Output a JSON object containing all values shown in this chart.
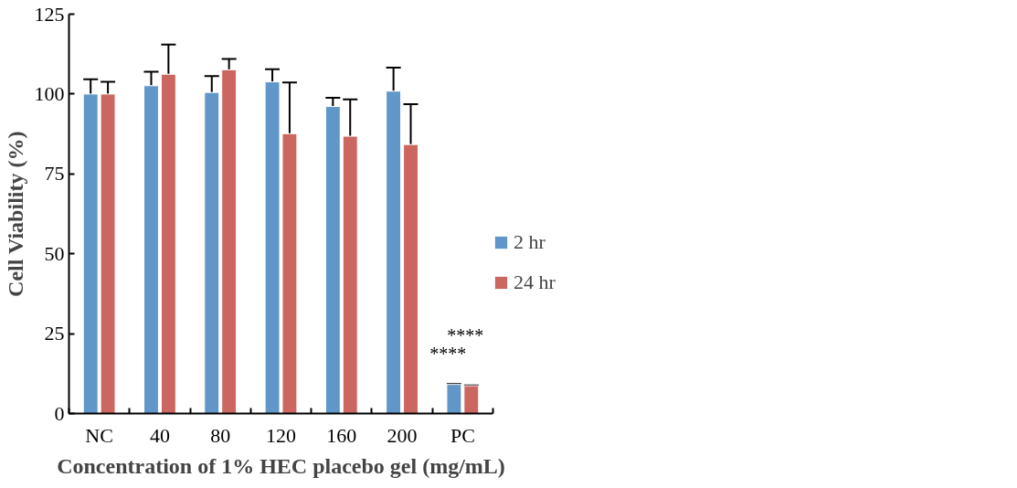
{
  "chart_data": {
    "type": "bar",
    "xlabel": "Concentration of 1% HEC placebo gel (mg/mL)",
    "ylabel": "Cell Viability (%)",
    "categories": [
      "NC",
      "40",
      "80",
      "120",
      "160",
      "200",
      "PC"
    ],
    "series": [
      {
        "name": "2 hr",
        "color": "#6096c8",
        "values": [
          100.0,
          102.6,
          100.5,
          103.8,
          96.1,
          100.9,
          9.1
        ],
        "errors": [
          [
            100.0,
            104.6
          ],
          [
            102.6,
            107.0
          ],
          [
            100.5,
            105.6
          ],
          [
            103.8,
            107.8
          ],
          [
            96.1,
            98.8
          ],
          [
            100.9,
            108.3
          ],
          [
            9.1,
            9.2
          ]
        ]
      },
      {
        "name": "24 hr",
        "color": "#cc6660",
        "values": [
          100.0,
          106.2,
          107.6,
          87.6,
          86.8,
          84.2,
          8.7
        ],
        "errors": [
          [
            100.0,
            103.8
          ],
          [
            106.2,
            115.5
          ],
          [
            107.6,
            111.0
          ],
          [
            87.6,
            103.6
          ],
          [
            86.8,
            98.3
          ],
          [
            84.2,
            96.8
          ],
          [
            8.7,
            8.8
          ]
        ]
      }
    ],
    "ylim": [
      0,
      125
    ],
    "yticks": [
      0,
      25,
      50,
      75,
      100,
      125
    ],
    "grid": false,
    "legend": "right",
    "annotations": [
      "****",
      "****"
    ]
  }
}
